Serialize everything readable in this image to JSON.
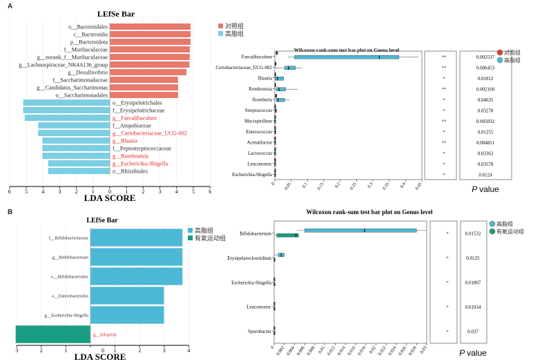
{
  "panels": {
    "A": {
      "letter": "A"
    },
    "B": {
      "letter": "B"
    }
  },
  "colors": {
    "control": "#e8796b",
    "highfat": "#7ccfe3",
    "highfat_b": "#4db8d6",
    "exercise": "#1a9c83",
    "control_dot": "#e0412e",
    "highlight_text": "#e02020"
  },
  "chart_data": [
    {
      "id": "A-lefse",
      "type": "bar",
      "title": "LEfSe Bar",
      "xlabel": "LDA SCORE",
      "xlim": [
        -6,
        6
      ],
      "xticks": [
        "6",
        "5",
        "4",
        "3",
        "2",
        "1",
        "0",
        "1",
        "2",
        "3",
        "4",
        "5",
        "6"
      ],
      "legend": [
        {
          "name": "对照组",
          "color": "#e8796b"
        },
        {
          "name": "高脂组",
          "color": "#7ccfe3"
        }
      ],
      "legend_position": "top-right",
      "bars": [
        {
          "label": "o__Bacteroidales",
          "value": 4.85,
          "group": "对照组",
          "highlight": false
        },
        {
          "label": "c__Bacteroidia",
          "value": 4.85,
          "group": "对照组",
          "highlight": false
        },
        {
          "label": "p__Bacteroidota",
          "value": 4.85,
          "group": "对照组",
          "highlight": false
        },
        {
          "label": "f__Muribaculaceae",
          "value": 4.8,
          "group": "对照组",
          "highlight": false
        },
        {
          "label": "g__norank_f__Muribaculaceae",
          "value": 4.8,
          "group": "对照组",
          "highlight": false
        },
        {
          "label": "g__Lachnospiraceae_NK4A136_group",
          "value": 4.78,
          "group": "对照组",
          "highlight": false
        },
        {
          "label": "g__Desulfovibrio",
          "value": 4.6,
          "group": "对照组",
          "highlight": false
        },
        {
          "label": "f__Saccharimonadaceae",
          "value": 4.1,
          "group": "对照组",
          "highlight": false
        },
        {
          "label": "g__Candidatus_Saccharimonas",
          "value": 4.1,
          "group": "对照组",
          "highlight": false
        },
        {
          "label": "o__Saccharimonadales",
          "value": 4.1,
          "group": "对照组",
          "highlight": false
        },
        {
          "label": "o__Erysipelotrichales",
          "value": -5.2,
          "group": "高脂组",
          "highlight": false
        },
        {
          "label": "f__Erysipelotrichaceae",
          "value": -5.2,
          "group": "高脂组",
          "highlight": false
        },
        {
          "label": "g__Faecalibaculum",
          "value": -5.1,
          "group": "高脂组",
          "highlight": true
        },
        {
          "label": "f__Atopobiaceae",
          "value": -4.3,
          "group": "高脂组",
          "highlight": false
        },
        {
          "label": "g__Coriobacteriaceae_UCG-002",
          "value": -4.3,
          "group": "高脂组",
          "highlight": true
        },
        {
          "label": "g__Blautia",
          "value": -4.05,
          "group": "高脂组",
          "highlight": true
        },
        {
          "label": "f__Peptostreptococcaceae",
          "value": -4.05,
          "group": "高脂组",
          "highlight": false
        },
        {
          "label": "g__Romboutsia",
          "value": -4.05,
          "group": "高脂组",
          "highlight": true
        },
        {
          "label": "g__Escherichia-Shigella",
          "value": -3.7,
          "group": "高脂组",
          "highlight": true
        },
        {
          "label": "o__Rhizobiales",
          "value": -3.7,
          "group": "高脂组",
          "highlight": false
        }
      ]
    },
    {
      "id": "A-wilcoxon",
      "type": "box",
      "title": "Wilcoxon rank-sum test bar plot on Genus level",
      "xlim": [
        0,
        0.45
      ],
      "xticks": [
        "0",
        "0.05",
        "0.1",
        "0.15",
        "0.2",
        "0.25",
        "0.3",
        "0.35",
        "0.4",
        "0.45"
      ],
      "legend": [
        {
          "name": "对照组",
          "color": "#e0412e"
        },
        {
          "name": "高脂组",
          "color": "#4db8d6"
        }
      ],
      "legend_position": "top-right",
      "pvalue_header": "P value",
      "rows": [
        {
          "label": "Faecalibaculum",
          "sig": "**",
          "p": "0.002537",
          "control": {
            "min": 0.0,
            "q1": 0.004,
            "median": 0.006,
            "q3": 0.008,
            "max": 0.014
          },
          "treat": {
            "min": 0.04,
            "q1": 0.06,
            "median": 0.32,
            "q3": 0.38,
            "max": 0.44
          }
        },
        {
          "label": "Coriobacteriaceae_UCG-002",
          "sig": "**",
          "p": "0.006453",
          "control": {
            "min": 0.0,
            "q1": 0.001,
            "median": 0.002,
            "q3": 0.004,
            "max": 0.005
          },
          "treat": {
            "min": 0.0,
            "q1": 0.03,
            "median": 0.042,
            "q3": 0.063,
            "max": 0.083
          }
        },
        {
          "label": "Blautia",
          "sig": "*",
          "p": "0.01012",
          "control": {
            "min": 0.0,
            "q1": 0.0,
            "median": 0.001,
            "q3": 0.002,
            "max": 0.003
          },
          "treat": {
            "min": 0.0,
            "q1": 0.002,
            "median": 0.008,
            "q3": 0.027,
            "max": 0.027
          }
        },
        {
          "label": "Romboutsia",
          "sig": "**",
          "p": "0.002168",
          "control": {
            "min": 0.0,
            "q1": 0.0,
            "median": 0.001,
            "q3": 0.002,
            "max": 0.003
          },
          "treat": {
            "min": 0.0,
            "q1": 0.005,
            "median": 0.013,
            "q3": 0.033,
            "max": 0.07
          }
        },
        {
          "label": "Roseburia",
          "sig": "*",
          "p": "0.04635",
          "control": {
            "min": 0.0,
            "q1": 0.002,
            "median": 0.004,
            "q3": 0.006,
            "max": 0.008
          },
          "treat": {
            "min": 0.0,
            "q1": 0.005,
            "median": 0.01,
            "q3": 0.03,
            "max": 0.045
          }
        },
        {
          "label": "Streptococcus",
          "sig": "*",
          "p": "0.03278",
          "control": {
            "min": 0.0,
            "q1": 0.0,
            "median": 0.0,
            "q3": 0.001,
            "max": 0.001
          },
          "treat": {
            "min": 0.0,
            "q1": 0.001,
            "median": 0.003,
            "q3": 0.005,
            "max": 0.006
          }
        },
        {
          "label": "Mucispirillum",
          "sig": "**",
          "p": "0.005032",
          "control": {
            "min": 0.0,
            "q1": 0.0,
            "median": 0.0,
            "q3": 0.001,
            "max": 0.001
          },
          "treat": {
            "min": 0.0,
            "q1": 0.0,
            "median": 0.0,
            "q3": 0.001,
            "max": 0.001
          }
        },
        {
          "label": "Enterococcus",
          "sig": "*",
          "p": "0.01255",
          "control": {
            "min": 0.0,
            "q1": 0.0,
            "median": 0.0,
            "q3": 0.001,
            "max": 0.001
          },
          "treat": {
            "min": 0.0,
            "q1": 0.0,
            "median": 0.001,
            "q3": 0.002,
            "max": 0.004
          }
        },
        {
          "label": "Acetatifactor",
          "sig": "**",
          "p": "0.004811",
          "control": {
            "min": 0.0,
            "q1": 0.0,
            "median": 0.0,
            "q3": 0.001,
            "max": 0.001
          },
          "treat": {
            "min": 0.0,
            "q1": 0.0,
            "median": 0.0,
            "q3": 0.001,
            "max": 0.001
          }
        },
        {
          "label": "Lactococcus",
          "sig": "*",
          "p": "0.03363",
          "control": {
            "min": 0.0,
            "q1": 0.0,
            "median": 0.0,
            "q3": 0.001,
            "max": 0.001
          },
          "treat": {
            "min": 0.0,
            "q1": 0.0,
            "median": 0.0,
            "q3": 0.001,
            "max": 0.001
          }
        },
        {
          "label": "Leuconostoc",
          "sig": "*",
          "p": "0.03578",
          "control": {
            "min": 0.0,
            "q1": 0.0,
            "median": 0.0,
            "q3": 0.001,
            "max": 0.001
          },
          "treat": {
            "min": 0.0,
            "q1": 0.0,
            "median": 0.0,
            "q3": 0.001,
            "max": 0.001
          }
        },
        {
          "label": "Escherichia-Shigella",
          "sig": "*",
          "p": "0.0124",
          "control": {
            "min": 0.0,
            "q1": 0.0,
            "median": 0.0,
            "q3": 0.001,
            "max": 0.001
          },
          "treat": {
            "min": 0.0,
            "q1": 0.0,
            "median": 0.0,
            "q3": 0.001,
            "max": 0.001
          }
        }
      ]
    },
    {
      "id": "B-lefse",
      "type": "bar",
      "title": "LEfSe Bar",
      "xlabel": "LDA SCORE",
      "xlim": [
        -3,
        4
      ],
      "xticks": [
        "3",
        "2",
        "1",
        "0",
        "1",
        "2",
        "3",
        "4"
      ],
      "legend": [
        {
          "name": "高脂组",
          "color": "#4db8d6"
        },
        {
          "name": "有氧运动组",
          "color": "#1a9c83"
        }
      ],
      "legend_position": "top-right",
      "bars": [
        {
          "label": "f__Bifidobacteriaceae",
          "value": 3.75,
          "group": "高脂组",
          "highlight": false
        },
        {
          "label": "g__Bifidobacterium",
          "value": 3.75,
          "group": "高脂组",
          "highlight": false
        },
        {
          "label": "o__Bifidobacteriales",
          "value": 3.75,
          "group": "高脂组",
          "highlight": false
        },
        {
          "label": "o__Enterobacterales",
          "value": 3.0,
          "group": "高脂组",
          "highlight": false
        },
        {
          "label": "g__Escherichia-Shigella",
          "value": 3.0,
          "group": "高脂组",
          "highlight": false
        },
        {
          "label": "g__Bilophila",
          "value": -3.05,
          "group": "有氧运动组",
          "highlight": true
        }
      ]
    },
    {
      "id": "B-wilcoxon",
      "type": "box",
      "title": "Wilcoxon rank-sum test bar plot on Genus level",
      "xlim": [
        0,
        0.03
      ],
      "xticks": [
        "0",
        "0.002",
        "0.004",
        "0.006",
        "0.008",
        "0.01",
        "0.012",
        "0.014",
        "0.016",
        "0.018",
        "0.02",
        "0.022",
        "0.024",
        "0.026",
        "0.028",
        "0.03"
      ],
      "legend": [
        {
          "name": "高脂组",
          "color": "#4db8d6"
        },
        {
          "name": "有氧运动组",
          "color": "#1a9c83"
        }
      ],
      "legend_position": "top-right",
      "pvalue_header": "P value",
      "rows": [
        {
          "label": "Bifidobacterium",
          "sig": "*",
          "p": "0.01532",
          "treat": {
            "min": 0.0045,
            "q1": 0.006,
            "median": 0.0178,
            "q3": 0.028,
            "max": 0.0298
          },
          "control": {
            "min": 0.0,
            "q1": 0.0005,
            "median": 0.0043,
            "q3": 0.0048,
            "max": 0.0048
          }
        },
        {
          "label": "Erysipelatoclostridium",
          "sig": "*",
          "p": "0.0125",
          "treat": {
            "min": 0.0,
            "q1": 0.0008,
            "median": 0.0014,
            "q3": 0.002,
            "max": 0.002
          },
          "control": {
            "min": 0.0,
            "q1": 0.0,
            "median": 0.0,
            "q3": 0.0001,
            "max": 0.0001
          }
        },
        {
          "label": "Escherichia-Shigella",
          "sig": "*",
          "p": "0.01807",
          "treat": {
            "min": 0.0,
            "q1": 0.0,
            "median": 0.0,
            "q3": 0.0001,
            "max": 0.0001
          },
          "control": {
            "min": 0.0,
            "q1": 0.0,
            "median": 0.0,
            "q3": 0.0001,
            "max": 0.0001
          }
        },
        {
          "label": "Leuconostoc",
          "sig": "*",
          "p": "0.01934",
          "treat": {
            "min": 0.0,
            "q1": 0.0,
            "median": 0.0,
            "q3": 0.0001,
            "max": 0.0001
          },
          "control": {
            "min": 0.0,
            "q1": 0.0,
            "median": 0.0,
            "q3": 0.0001,
            "max": 0.0001
          }
        },
        {
          "label": "Sporobacter",
          "sig": "*",
          "p": "0.037",
          "treat": {
            "min": 0.0,
            "q1": 0.0,
            "median": 0.0,
            "q3": 0.0001,
            "max": 0.0001
          },
          "control": {
            "min": 0.0,
            "q1": 0.0,
            "median": 0.0,
            "q3": 0.0001,
            "max": 0.0001
          }
        }
      ]
    }
  ]
}
